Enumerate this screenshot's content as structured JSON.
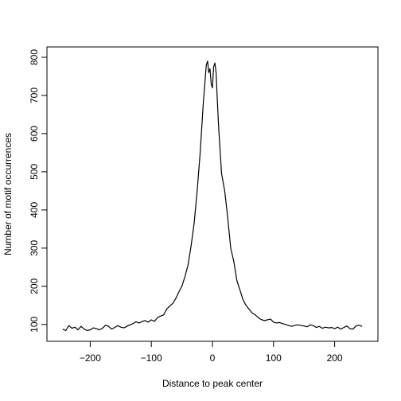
{
  "chart_data": {
    "type": "line",
    "title": "",
    "xlabel": "Distance to peak center",
    "ylabel": "Number of motif occurrences",
    "xlim": [
      -250,
      250
    ],
    "ylim": [
      85,
      800
    ],
    "grid": false,
    "legend": "none",
    "x_ticks": [
      -200,
      -100,
      0,
      100,
      200
    ],
    "x_tick_labels": [
      "−200",
      "−100",
      "0",
      "100",
      "200"
    ],
    "y_ticks": [
      100,
      200,
      300,
      400,
      500,
      600,
      700,
      800
    ],
    "y_tick_labels": [
      "100",
      "200",
      "300",
      "400",
      "500",
      "600",
      "700",
      "800"
    ],
    "line_color": "#000000",
    "series": [
      {
        "x": [
          -245,
          -240,
          -235,
          -230,
          -225,
          -220,
          -215,
          -210,
          -205,
          -200,
          -195,
          -190,
          -185,
          -180,
          -175,
          -170,
          -165,
          -160,
          -155,
          -150,
          -145,
          -140,
          -135,
          -130,
          -125,
          -120,
          -115,
          -110,
          -105,
          -100,
          -95,
          -90,
          -85,
          -80,
          -75,
          -70,
          -65,
          -60,
          -55,
          -50,
          -45,
          -40,
          -35,
          -30,
          -25,
          -20,
          -15,
          -10,
          -8,
          -6,
          -4,
          -2,
          0,
          2,
          4,
          6,
          8,
          10,
          15,
          20,
          25,
          30,
          35,
          40,
          45,
          50,
          55,
          60,
          65,
          70,
          75,
          80,
          85,
          90,
          95,
          100,
          105,
          110,
          115,
          120,
          125,
          130,
          135,
          140,
          145,
          150,
          155,
          160,
          165,
          170,
          175,
          180,
          185,
          190,
          195,
          200,
          205,
          210,
          215,
          220,
          225,
          230,
          235,
          240,
          245
        ],
        "y": [
          88,
          84,
          97,
          90,
          93,
          86,
          95,
          88,
          84,
          86,
          91,
          89,
          86,
          90,
          98,
          95,
          88,
          92,
          97,
          93,
          91,
          95,
          99,
          102,
          107,
          104,
          108,
          110,
          106,
          112,
          108,
          118,
          122,
          125,
          140,
          148,
          155,
          168,
          185,
          200,
          225,
          255,
          305,
          365,
          450,
          550,
          680,
          780,
          790,
          760,
          770,
          730,
          720,
          775,
          785,
          760,
          690,
          620,
          495,
          450,
          380,
          300,
          265,
          215,
          190,
          165,
          150,
          140,
          130,
          125,
          118,
          113,
          110,
          112,
          114,
          106,
          104,
          105,
          102,
          100,
          97,
          95,
          98,
          99,
          97,
          96,
          94,
          99,
          97,
          92,
          95,
          90,
          93,
          91,
          92,
          89,
          93,
          88,
          92,
          96,
          89,
          88,
          96,
          98,
          95
        ]
      }
    ]
  }
}
